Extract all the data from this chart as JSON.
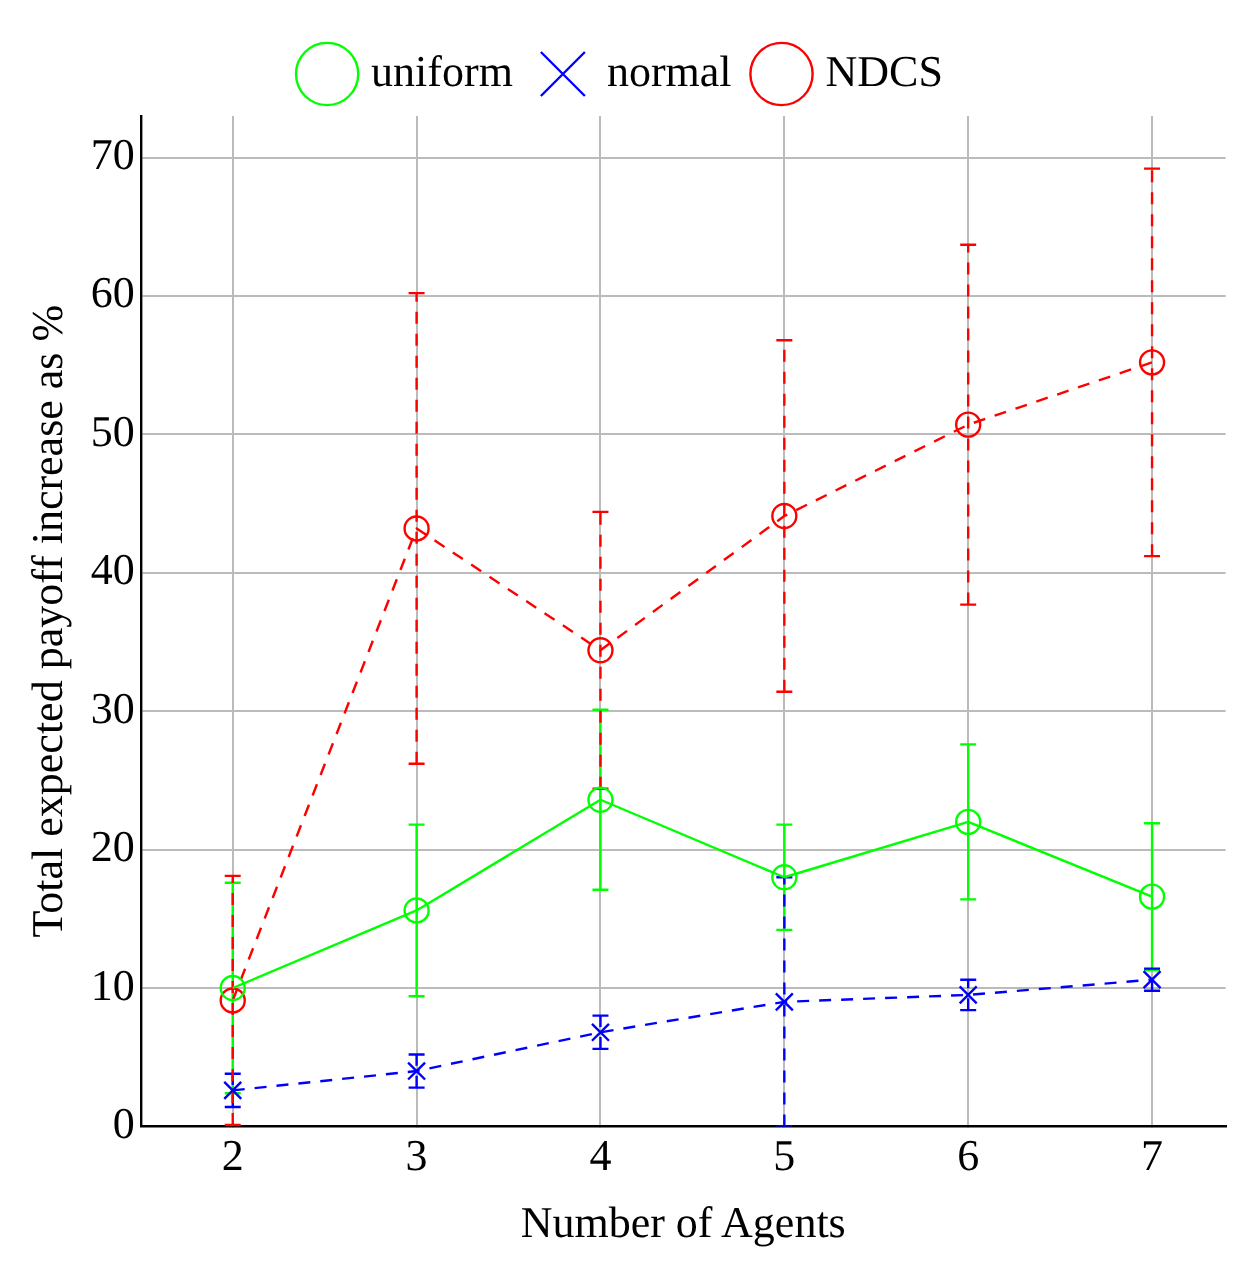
{
  "chart_data": {
    "type": "line",
    "xlabel": "Number of Agents",
    "ylabel": "Total expected payoff increase as %",
    "x": [
      2,
      3,
      4,
      5,
      6,
      7
    ],
    "xlim": [
      1.5,
      7.4
    ],
    "xticks": [
      2,
      3,
      4,
      5,
      6,
      7
    ],
    "ylim": [
      0,
      73
    ],
    "yticks": [
      0,
      10,
      20,
      30,
      40,
      50,
      60,
      70
    ],
    "grid": true,
    "legend": "top",
    "series": [
      {
        "name": "uniform",
        "color": "#00ff00",
        "marker": "circle",
        "line_style": "solid",
        "values": [
          10,
          15.6,
          23.6,
          18,
          22,
          16.6
        ],
        "errors": [
          7.6,
          6.2,
          6.5,
          3.8,
          5.6,
          5.3
        ]
      },
      {
        "name": "normal",
        "color": "#0000ff",
        "marker": "cross",
        "line_style": "dashed",
        "values": [
          2.6,
          4,
          6.8,
          9,
          9.5,
          10.6
        ],
        "errors": [
          1.2,
          1.2,
          1.2,
          9,
          1.1,
          0.8
        ]
      },
      {
        "name": "NDCS",
        "color": "#ff0000",
        "marker": "circle",
        "line_style": "dashed",
        "values": [
          9.1,
          43.2,
          34.4,
          44.1,
          50.7,
          55.2
        ],
        "errors": [
          9,
          17,
          10,
          12.7,
          13,
          14
        ]
      }
    ]
  }
}
